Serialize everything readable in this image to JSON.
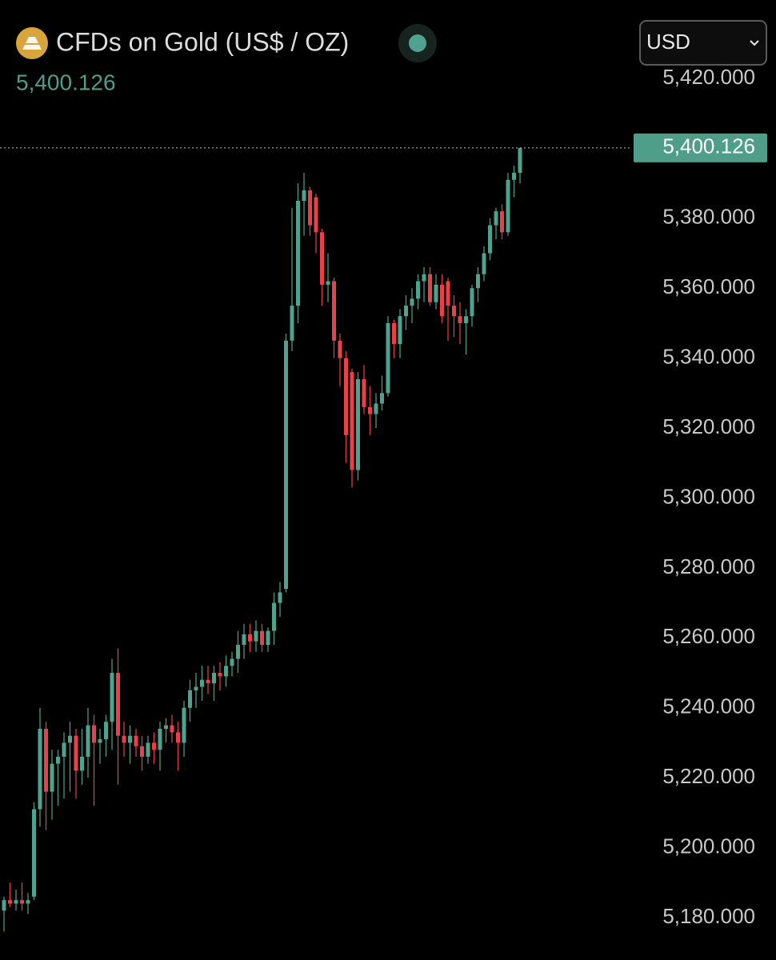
{
  "chart_data": {
    "type": "candlestick",
    "title": "CFDs on Gold (US$ / OZ)",
    "currency": "USD",
    "last_price": {
      "value": 5400.126,
      "label": "5,400.126"
    },
    "up_color": "#4fa38e",
    "down_color": "#e8414a",
    "ylim": [
      5167.87,
      5442.42
    ],
    "yticks": [
      {
        "value": 5180,
        "label": "5,180.000"
      },
      {
        "value": 5200,
        "label": "5,200.000"
      },
      {
        "value": 5220,
        "label": "5,220.000"
      },
      {
        "value": 5240,
        "label": "5,240.000"
      },
      {
        "value": 5260,
        "label": "5,260.000"
      },
      {
        "value": 5280,
        "label": "5,280.000"
      },
      {
        "value": 5300,
        "label": "5,300.000"
      },
      {
        "value": 5320,
        "label": "5,320.000"
      },
      {
        "value": 5340,
        "label": "5,340.000"
      },
      {
        "value": 5360,
        "label": "5,360.000"
      },
      {
        "value": 5380,
        "label": "5,380.000"
      },
      {
        "value": 5420,
        "label": "5,420.000"
      }
    ],
    "open": [
      5182,
      5185,
      5184,
      5185,
      5184,
      5186,
      5211,
      5234,
      5216,
      5224,
      5226,
      5230,
      5232,
      5222,
      5226,
      5235,
      5230,
      5231,
      5236,
      5250,
      5232,
      5230,
      5232,
      5229,
      5226,
      5230,
      5228,
      5234,
      5235,
      5233,
      5230,
      5240,
      5245,
      5246,
      5248,
      5247,
      5250,
      5249,
      5252,
      5254,
      5258,
      5261,
      5259,
      5262,
      5258,
      5262,
      5270,
      5274,
      5345,
      5355,
      5385,
      5388,
      5386,
      5376,
      5361,
      5362,
      5345,
      5340,
      5336,
      5308,
      5334,
      5326,
      5324,
      5327,
      5330,
      5350,
      5344,
      5352,
      5355,
      5357,
      5362,
      5364,
      5356,
      5361,
      5362,
      5355,
      5352,
      5350,
      5352,
      5360,
      5364,
      5370,
      5378,
      5382,
      5376,
      5391,
      5393
    ],
    "high": [
      5186,
      5190,
      5188,
      5190,
      5187,
      5213,
      5240,
      5236,
      5228,
      5228,
      5233,
      5236,
      5234,
      5234,
      5240,
      5238,
      5234,
      5238,
      5254,
      5257,
      5236,
      5235,
      5234,
      5232,
      5232,
      5233,
      5236,
      5237,
      5238,
      5236,
      5242,
      5248,
      5250,
      5252,
      5252,
      5252,
      5253,
      5255,
      5256,
      5262,
      5264,
      5264,
      5265,
      5264,
      5263,
      5273,
      5276,
      5347,
      5383,
      5390,
      5393,
      5389,
      5387,
      5377,
      5370,
      5363,
      5347,
      5342,
      5337,
      5336,
      5338,
      5332,
      5330,
      5335,
      5352,
      5351,
      5354,
      5358,
      5360,
      5364,
      5366,
      5366,
      5364,
      5364,
      5363,
      5358,
      5356,
      5354,
      5361,
      5366,
      5372,
      5380,
      5383,
      5384,
      5393,
      5395,
      5400.126
    ],
    "low": [
      5176,
      5183,
      5182,
      5182,
      5181,
      5185,
      5206,
      5205,
      5208,
      5212,
      5214,
      5216,
      5214,
      5218,
      5220,
      5212,
      5224,
      5226,
      5228,
      5218,
      5226,
      5224,
      5226,
      5222,
      5224,
      5224,
      5222,
      5230,
      5230,
      5222,
      5226,
      5236,
      5240,
      5242,
      5244,
      5242,
      5245,
      5246,
      5249,
      5250,
      5254,
      5256,
      5256,
      5256,
      5256,
      5258,
      5266,
      5273,
      5342,
      5350,
      5375,
      5375,
      5370,
      5355,
      5356,
      5340,
      5332,
      5310,
      5303,
      5305,
      5324,
      5318,
      5320,
      5325,
      5329,
      5340,
      5340,
      5348,
      5350,
      5354,
      5356,
      5355,
      5354,
      5350,
      5345,
      5346,
      5344,
      5341,
      5349,
      5356,
      5362,
      5368,
      5374,
      5374,
      5375,
      5386,
      5390
    ],
    "close": [
      5185,
      5184,
      5185,
      5184,
      5185,
      5211,
      5234,
      5216,
      5224,
      5226,
      5230,
      5232,
      5222,
      5226,
      5235,
      5230,
      5231,
      5236,
      5250,
      5232,
      5230,
      5232,
      5229,
      5226,
      5230,
      5228,
      5234,
      5235,
      5233,
      5230,
      5240,
      5245,
      5246,
      5248,
      5247,
      5250,
      5249,
      5252,
      5254,
      5258,
      5261,
      5259,
      5262,
      5258,
      5262,
      5270,
      5273,
      5345,
      5355,
      5385,
      5388,
      5378,
      5376,
      5361,
      5362,
      5345,
      5340,
      5318,
      5308,
      5334,
      5326,
      5324,
      5327,
      5330,
      5350,
      5344,
      5352,
      5355,
      5357,
      5362,
      5364,
      5356,
      5361,
      5352,
      5355,
      5352,
      5350,
      5352,
      5360,
      5364,
      5370,
      5378,
      5382,
      5376,
      5391,
      5393,
      5400.126
    ]
  }
}
